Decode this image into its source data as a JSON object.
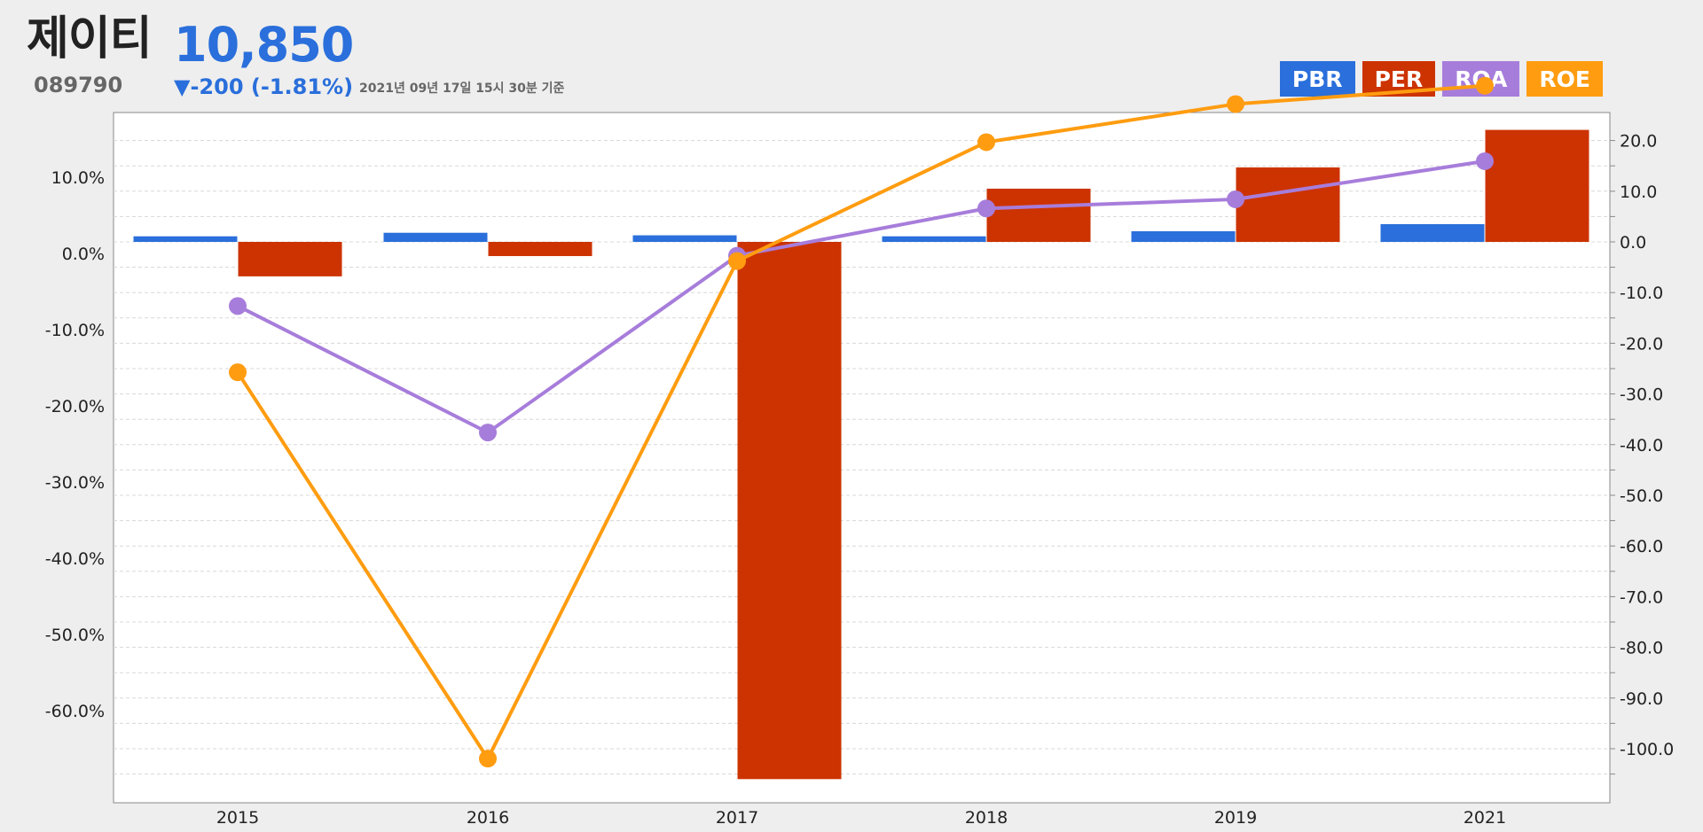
{
  "header": {
    "name": "제이티",
    "price": "10,850",
    "code": "089790",
    "change": "▼-200 (-1.81%)",
    "timestamp": "2021년 09년 17일 15시 30분 기준"
  },
  "legend": [
    {
      "label": "PBR",
      "color": "#2a6fdb"
    },
    {
      "label": "PER",
      "color": "#cc3300"
    },
    {
      "label": "ROA",
      "color": "#a77ddb"
    },
    {
      "label": "ROE",
      "color": "#ff9c10"
    }
  ],
  "chart_data": {
    "type": "bar",
    "categories": [
      "2015",
      "2016",
      "2017",
      "2018",
      "2019",
      "2021"
    ],
    "y_left": {
      "ticks": [
        "10.0%",
        "0.0%",
        "-10.0%",
        "-20.0%",
        "-30.0%",
        "-40.0%",
        "-50.0%",
        "-60.0%"
      ],
      "tick_values": [
        10,
        0,
        -10,
        -20,
        -30,
        -40,
        -50,
        -60
      ],
      "range": [
        -71.6,
        17.0
      ]
    },
    "y_right": {
      "ticks": [
        "20.0",
        "10.0",
        "0.0",
        "-10.0",
        "-20.0",
        "-30.0",
        "-40.0",
        "-50.0",
        "-60.0",
        "-70.0",
        "-80.0",
        "-90.0",
        "-100.0"
      ],
      "tick_values": [
        20,
        10,
        0,
        -10,
        -20,
        -30,
        -40,
        -50,
        -60,
        -70,
        -80,
        -90,
        -100
      ],
      "range": [
        -107,
        25
      ]
    },
    "series": [
      {
        "name": "PBR",
        "type": "bar",
        "axis": "right",
        "color": "#2a6fdb",
        "values": [
          1.1,
          1.8,
          1.3,
          1.1,
          2.1,
          3.5
        ]
      },
      {
        "name": "PER",
        "type": "bar",
        "axis": "right",
        "color": "#cc3300",
        "values": [
          -6.8,
          -2.8,
          -106.0,
          10.5,
          14.7,
          22.1
        ]
      },
      {
        "name": "ROA",
        "type": "line",
        "axis": "left",
        "color": "#a77ddb",
        "values": [
          -6.9,
          -23.5,
          -0.3,
          5.9,
          7.1,
          12.1
        ]
      },
      {
        "name": "ROE",
        "type": "line",
        "axis": "left",
        "color": "#ff9c10",
        "values": [
          -15.6,
          -66.3,
          -1.0,
          14.6,
          19.6,
          22.0
        ]
      }
    ],
    "grid": true,
    "legend_position": "top-right"
  }
}
